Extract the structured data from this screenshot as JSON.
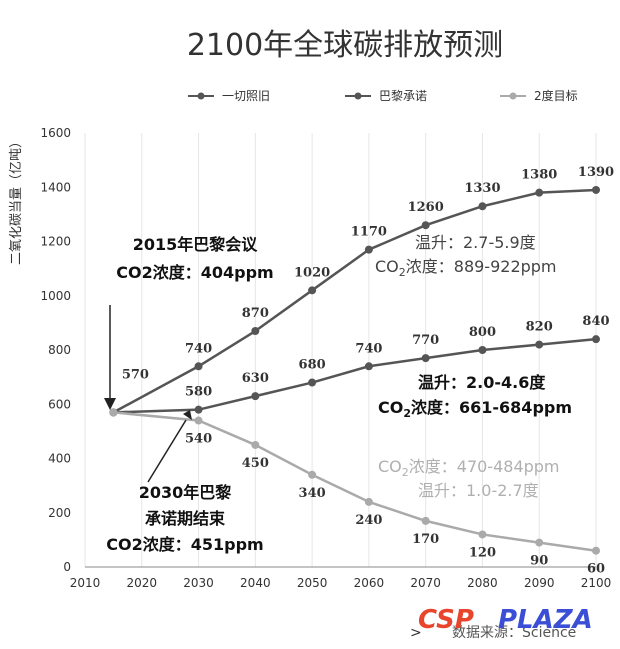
{
  "chart_data": {
    "type": "line",
    "title": "2100年全球碳排放预测",
    "ylabel": "二氧化碳当量（亿吨）",
    "xlabel": "",
    "x_ticks": [
      2010,
      2020,
      2030,
      2040,
      2050,
      2060,
      2070,
      2080,
      2090,
      2100
    ],
    "y_ticks": [
      0,
      200,
      400,
      600,
      800,
      1000,
      1200,
      1400,
      1600
    ],
    "xlim": [
      2010,
      2100
    ],
    "ylim": [
      0,
      1600
    ],
    "grid": "vertical",
    "legend_position": "top",
    "series": [
      {
        "name": "一切照旧",
        "color": "#555555",
        "x": [
          2015,
          2030,
          2040,
          2050,
          2060,
          2070,
          2080,
          2090,
          2100
        ],
        "y": [
          570,
          740,
          870,
          1020,
          1170,
          1260,
          1330,
          1380,
          1390
        ],
        "labels": [
          "570",
          "740",
          "870",
          "1020",
          "1170",
          "1260",
          "1330",
          "1380",
          "1390"
        ]
      },
      {
        "name": "巴黎承诺",
        "color": "#555555",
        "x": [
          2015,
          2030,
          2040,
          2050,
          2060,
          2070,
          2080,
          2090,
          2100
        ],
        "y": [
          570,
          580,
          630,
          680,
          740,
          770,
          800,
          820,
          840
        ],
        "labels": [
          "",
          "580",
          "630",
          "680",
          "740",
          "770",
          "800",
          "820",
          "840"
        ]
      },
      {
        "name": "2度目标",
        "color": "#aaaaaa",
        "x": [
          2015,
          2030,
          2040,
          2050,
          2060,
          2070,
          2080,
          2090,
          2100
        ],
        "y": [
          570,
          540,
          450,
          340,
          240,
          170,
          120,
          90,
          60
        ],
        "labels": [
          "",
          "540",
          "450",
          "340",
          "240",
          "170",
          "120",
          "90",
          "60"
        ]
      }
    ],
    "annotations": {
      "paris_2015": {
        "line1": "2015年巴黎会议",
        "line2": "CO2浓度：404ppm"
      },
      "paris_2030": {
        "line1": "2030年巴黎",
        "line2": "承诺期结束",
        "line3": "CO2浓度：451ppm"
      },
      "bau_range": {
        "temp": "温升：2.7-5.9度",
        "co2_prefix": "CO",
        "co2_sub": "2",
        "co2_rest": "浓度：889-922ppm"
      },
      "paris_range": {
        "temp": "温升：2.0-4.6度",
        "co2_prefix": "CO",
        "co2_sub": "2",
        "co2_rest": "浓度：661-684ppm"
      },
      "twodeg_range": {
        "co2_prefix": "CO",
        "co2_sub": "2",
        "co2_rest": "浓度：470-484ppm",
        "temp": "温升：1.0-2.7度"
      }
    }
  },
  "footer": {
    "source": "数据来源：Science",
    "logo_csp": "CSP",
    "logo_plaza": "PLAZA"
  }
}
